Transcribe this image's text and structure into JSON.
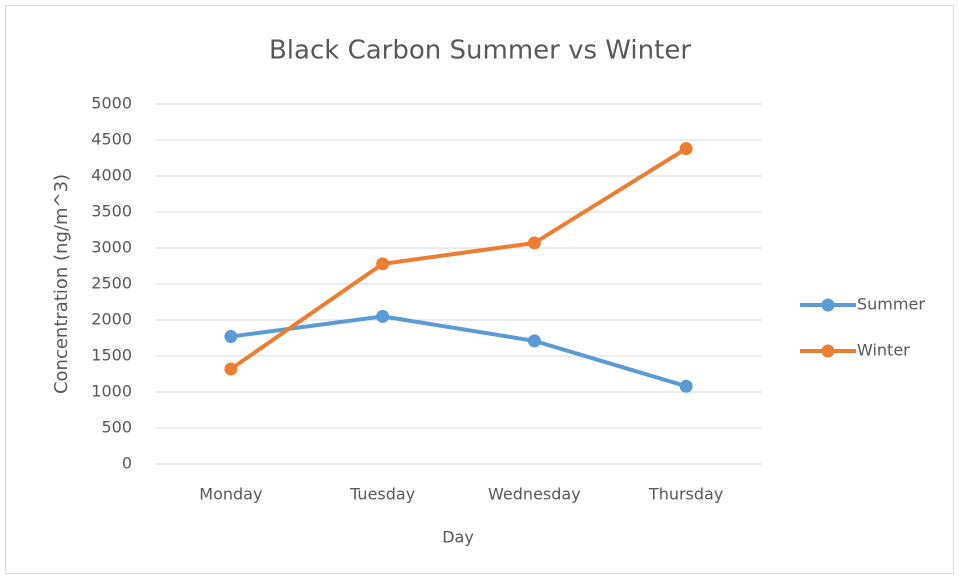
{
  "chart_data": {
    "type": "line",
    "title": "Black Carbon Summer vs Winter",
    "x_label": "Day",
    "y_label": "Concentration (ng/m^3)",
    "categories": [
      "Monday",
      "Tuesday",
      "Wednesday",
      "Thursday"
    ],
    "series": [
      {
        "name": "Summer",
        "color": "#5b9bd5",
        "values": [
          1770,
          2050,
          1710,
          1080
        ]
      },
      {
        "name": "Winter",
        "color": "#ed7d31",
        "values": [
          1320,
          2780,
          3070,
          4380
        ]
      }
    ],
    "ylim": [
      0,
      5000
    ],
    "yticks": [
      0,
      500,
      1000,
      1500,
      2000,
      2500,
      3000,
      3500,
      4000,
      4500,
      5000
    ],
    "grid": true,
    "legend": "right"
  }
}
